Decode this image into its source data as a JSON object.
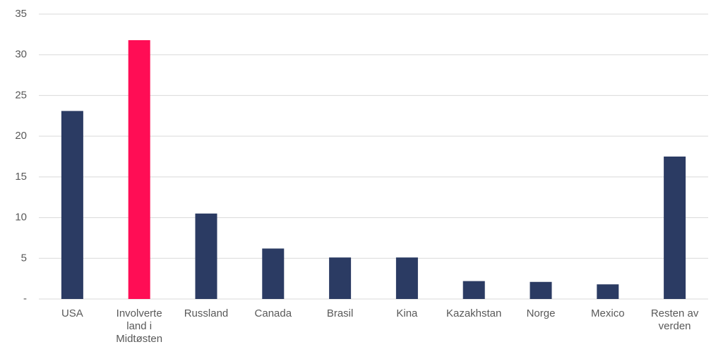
{
  "chart_data": {
    "type": "bar",
    "categories": [
      "USA",
      "Involverte land i Midtøsten",
      "Russland",
      "Canada",
      "Brasil",
      "Kina",
      "Kazakhstan",
      "Norge",
      "Mexico",
      "Resten av verden"
    ],
    "values": [
      23.1,
      31.8,
      10.5,
      6.2,
      5.1,
      5.1,
      2.2,
      2.1,
      1.8,
      17.5
    ],
    "colors": [
      "#2b3b63",
      "#ff0d55",
      "#2b3b63",
      "#2b3b63",
      "#2b3b63",
      "#2b3b63",
      "#2b3b63",
      "#2b3b63",
      "#2b3b63",
      "#2b3b63"
    ],
    "ylim": [
      0,
      35
    ],
    "yticks": [
      {
        "value": 0,
        "label": "-"
      },
      5,
      10,
      15,
      20,
      25,
      30,
      35
    ],
    "grid": true
  }
}
